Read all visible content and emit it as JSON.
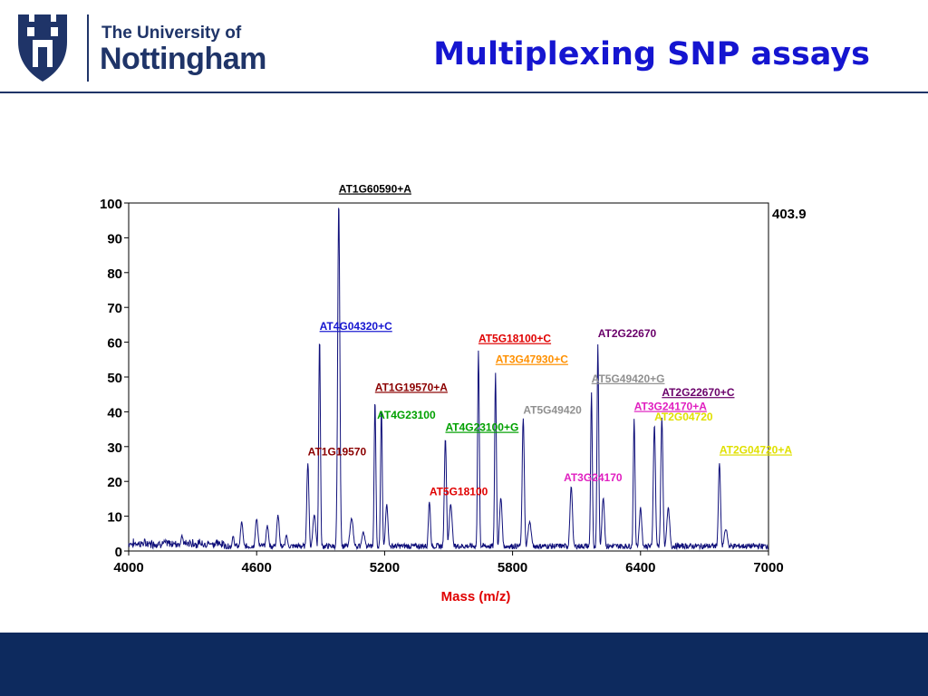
{
  "header": {
    "logo_line1": "The University of",
    "logo_line2": "Nottingham",
    "title": "Multiplexing SNP assays"
  },
  "colors": {
    "navy": "#1f3468",
    "title_blue": "#1515d0",
    "trace": "#10107a",
    "footer": "#0d2a5e"
  },
  "chart_data": {
    "type": "line",
    "xlabel": "Mass (m/z)",
    "ylabel": "",
    "xlim": [
      4000,
      7000
    ],
    "ylim": [
      0,
      100
    ],
    "x_ticks": [
      4000,
      4600,
      5200,
      5800,
      6400,
      7000
    ],
    "y_ticks": [
      0,
      10,
      20,
      30,
      40,
      50,
      60,
      70,
      80,
      90,
      100
    ],
    "max_intensity_label": "403.9",
    "peaks": [
      {
        "x": 4250,
        "y": 4,
        "w": 6
      },
      {
        "x": 4490,
        "y": 4,
        "w": 5
      },
      {
        "x": 4530,
        "y": 8,
        "w": 6
      },
      {
        "x": 4600,
        "y": 9,
        "w": 6
      },
      {
        "x": 4650,
        "y": 7,
        "w": 6
      },
      {
        "x": 4700,
        "y": 10,
        "w": 6
      },
      {
        "x": 4740,
        "y": 4,
        "w": 6
      },
      {
        "x": 4840,
        "y": 25,
        "w": 5
      },
      {
        "x": 4870,
        "y": 10,
        "w": 7
      },
      {
        "x": 4895,
        "y": 61,
        "w": 4
      },
      {
        "x": 4985,
        "y": 100,
        "w": 5
      },
      {
        "x": 5045,
        "y": 9,
        "w": 8
      },
      {
        "x": 5100,
        "y": 5,
        "w": 8
      },
      {
        "x": 5155,
        "y": 43,
        "w": 4
      },
      {
        "x": 5185,
        "y": 41,
        "w": 4
      },
      {
        "x": 5210,
        "y": 13,
        "w": 6
      },
      {
        "x": 5410,
        "y": 14,
        "w": 5
      },
      {
        "x": 5485,
        "y": 32,
        "w": 5
      },
      {
        "x": 5510,
        "y": 13,
        "w": 7
      },
      {
        "x": 5640,
        "y": 57,
        "w": 4
      },
      {
        "x": 5720,
        "y": 51,
        "w": 4
      },
      {
        "x": 5745,
        "y": 15,
        "w": 6
      },
      {
        "x": 5850,
        "y": 38,
        "w": 5
      },
      {
        "x": 5880,
        "y": 8,
        "w": 8
      },
      {
        "x": 6075,
        "y": 18,
        "w": 6
      },
      {
        "x": 6170,
        "y": 45,
        "w": 4
      },
      {
        "x": 6200,
        "y": 59,
        "w": 4
      },
      {
        "x": 6225,
        "y": 15,
        "w": 6
      },
      {
        "x": 6370,
        "y": 38,
        "w": 4
      },
      {
        "x": 6400,
        "y": 12,
        "w": 6
      },
      {
        "x": 6465,
        "y": 36,
        "w": 5
      },
      {
        "x": 6500,
        "y": 38,
        "w": 5
      },
      {
        "x": 6530,
        "y": 12,
        "w": 7
      },
      {
        "x": 6770,
        "y": 25,
        "w": 5
      },
      {
        "x": 6800,
        "y": 6,
        "w": 8
      }
    ],
    "annotations": [
      {
        "text": "AT1G60590+A",
        "x": 4985,
        "y": 103,
        "color": "#000000",
        "underline": true
      },
      {
        "text": "AT4G04320+C",
        "x": 4895,
        "y": 63.5,
        "color": "#1515d0",
        "underline": true
      },
      {
        "text": "AT1G19570+A",
        "x": 5155,
        "y": 46,
        "color": "#8b0000",
        "underline": true
      },
      {
        "text": "AT4G23100",
        "x": 5165,
        "y": 38,
        "color": "#00a000",
        "underline": false
      },
      {
        "text": "AT4G23100+G",
        "x": 5485,
        "y": 34.5,
        "color": "#00a000",
        "underline": true
      },
      {
        "text": "AT1G19570",
        "x": 4840,
        "y": 27.5,
        "color": "#8b0000",
        "underline": false
      },
      {
        "text": "AT5G18100",
        "x": 5410,
        "y": 16,
        "color": "#e00000",
        "underline": false
      },
      {
        "text": "AT5G18100+C",
        "x": 5640,
        "y": 60,
        "color": "#e00000",
        "underline": true
      },
      {
        "text": "AT3G47930+C",
        "x": 5720,
        "y": 54,
        "color": "#ff9000",
        "underline": true
      },
      {
        "text": "AT5G49420",
        "x": 5850,
        "y": 39.5,
        "color": "#909090",
        "underline": false
      },
      {
        "text": "AT5G49420+G",
        "x": 6170,
        "y": 48.5,
        "color": "#909090",
        "underline": true
      },
      {
        "text": "AT2G22670",
        "x": 6200,
        "y": 61.5,
        "color": "#6a006a",
        "underline": false
      },
      {
        "text": "AT2G22670+C",
        "x": 6500,
        "y": 44.5,
        "color": "#6a006a",
        "underline": true
      },
      {
        "text": "AT3G24170+A",
        "x": 6370,
        "y": 40.5,
        "color": "#e020c0",
        "underline": true
      },
      {
        "text": "AT3G24170",
        "x": 6040,
        "y": 20,
        "color": "#e020c0",
        "underline": false
      },
      {
        "text": "AT2G04720",
        "x": 6465,
        "y": 37.5,
        "color": "#e0e000",
        "underline": false
      },
      {
        "text": "AT2G04720+A",
        "x": 6770,
        "y": 28,
        "color": "#e0e000",
        "underline": true
      }
    ]
  }
}
